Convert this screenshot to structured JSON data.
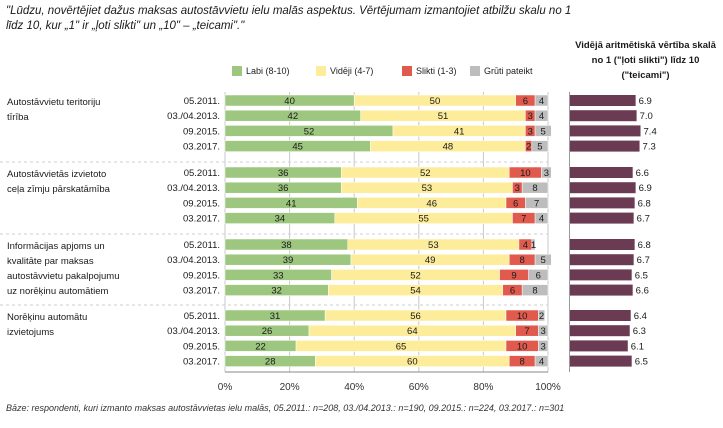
{
  "question": "\"Lūdzu, novērtējiet dažus maksas autostāvvietu ielu malās aspektus. Vērtējumam izmantojiet atbilžu skalu no 1 līdz 10, kur „1\" ir „ļoti slikti\" un „10\" – „teicami\".\"",
  "avg_title": "Vidējā aritmētiskā vērtība skalā no 1 (\"ļoti slikti\") līdz 10 (\"teicami\")",
  "base_note": "Bāze: respondenti, kuri izmanto maksas autostāvvietas ielu malās, 05.2011.: n=208, 03./04.2013.: n=190, 09.2015.: n=224, 03.2017.: n=301",
  "colors": {
    "good": "#9dc67f",
    "average": "#fdec9a",
    "bad": "#e05a4e",
    "hard": "#bdbdbd",
    "avg_bar": "#6b3b54"
  },
  "chart_data": {
    "type": "bar",
    "orientation": "horizontal-stacked",
    "xlim": [
      0,
      100
    ],
    "x_ticks": [
      "0%",
      "20%",
      "40%",
      "60%",
      "80%",
      "100%"
    ],
    "series": [
      {
        "name": "Labi (8-10)",
        "key": "good"
      },
      {
        "name": "Vidēji (4-7)",
        "key": "average"
      },
      {
        "name": "Slikti (1-3)",
        "key": "bad"
      },
      {
        "name": "Grūti pateikt",
        "key": "hard"
      }
    ],
    "groups": [
      {
        "label": "Autostāvvietu teritoriju tīrība",
        "rows": [
          {
            "period": "05.2011.",
            "values": [
              40,
              50,
              6,
              4
            ],
            "avg": "6.9"
          },
          {
            "period": "03./04.2013.",
            "values": [
              42,
              51,
              3,
              4
            ],
            "avg": "7.0"
          },
          {
            "period": "09.2015.",
            "values": [
              52,
              41,
              3,
              5
            ],
            "avg": "7.4"
          },
          {
            "period": "03.2017.",
            "values": [
              45,
              48,
              2,
              5
            ],
            "avg": "7.3"
          }
        ]
      },
      {
        "label": "Autostāvvietās izvietoto ceļa zīmju pārskatāmība",
        "rows": [
          {
            "period": "05.2011.",
            "values": [
              36,
              52,
              10,
              3
            ],
            "avg": "6.6"
          },
          {
            "period": "03./04.2013.",
            "values": [
              36,
              53,
              3,
              8
            ],
            "avg": "6.9"
          },
          {
            "period": "09.2015.",
            "values": [
              41,
              46,
              6,
              7
            ],
            "avg": "6.8"
          },
          {
            "period": "03.2017.",
            "values": [
              34,
              55,
              7,
              4
            ],
            "avg": "6.7"
          }
        ]
      },
      {
        "label": "Informācijas apjoms un kvalitāte par maksas autostāvvietu pakalpojumu uz norēķinu automātiem",
        "rows": [
          {
            "period": "05.2011.",
            "values": [
              38,
              53,
              4,
              1
            ],
            "avg": "6.8"
          },
          {
            "period": "03./04.2013.",
            "values": [
              39,
              49,
              8,
              5
            ],
            "avg": "6.7"
          },
          {
            "period": "09.2015.",
            "values": [
              33,
              52,
              9,
              6
            ],
            "avg": "6.5"
          },
          {
            "period": "03.2017.",
            "values": [
              32,
              54,
              6,
              8
            ],
            "avg": "6.6"
          }
        ]
      },
      {
        "label": "Norēķinu automātu izvietojums",
        "rows": [
          {
            "period": "05.2011.",
            "values": [
              31,
              56,
              10,
              2
            ],
            "avg": "6.4"
          },
          {
            "period": "03./04.2013.",
            "values": [
              26,
              64,
              7,
              3
            ],
            "avg": "6.3"
          },
          {
            "period": "09.2015.",
            "values": [
              22,
              65,
              10,
              3
            ],
            "avg": "6.1"
          },
          {
            "period": "03.2017.",
            "values": [
              28,
              60,
              8,
              4
            ],
            "avg": "6.5"
          }
        ]
      }
    ],
    "avg_scale": [
      0,
      10
    ]
  }
}
